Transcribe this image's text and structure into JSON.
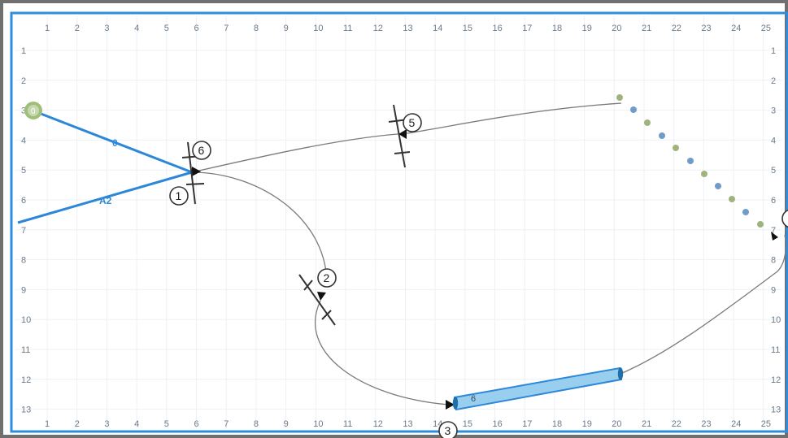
{
  "diagram": {
    "columns": [
      "1",
      "2",
      "3",
      "4",
      "5",
      "6",
      "7",
      "8",
      "9",
      "10",
      "11",
      "12",
      "13",
      "14",
      "15",
      "16",
      "17",
      "18",
      "19",
      "20",
      "21",
      "22",
      "23",
      "24",
      "25"
    ],
    "rows": [
      "1",
      "2",
      "3",
      "4",
      "5",
      "6",
      "7",
      "8",
      "9",
      "10",
      "11",
      "12",
      "13"
    ],
    "nodes": [
      {
        "label": "1"
      },
      {
        "label": "2"
      },
      {
        "label": "3"
      },
      {
        "label": "5"
      },
      {
        "label": "6"
      }
    ],
    "line_labels": {
      "upper": "0",
      "lower": "A2"
    },
    "start_point_label": "0",
    "pipe_label": "6",
    "colors": {
      "frame_outer": "#6f6f6f",
      "frame_inner": "#2d8ee0",
      "grid": "#edf1f5",
      "line": "#2c87d8",
      "pipe_fill": "#99cfee",
      "pipe_stroke": "#2e87d8",
      "pipe_cap": "#1f6fa8",
      "path": "#7b7b7b",
      "marker_green": "#9fb47d",
      "marker_blue": "#6f9cc8"
    }
  }
}
